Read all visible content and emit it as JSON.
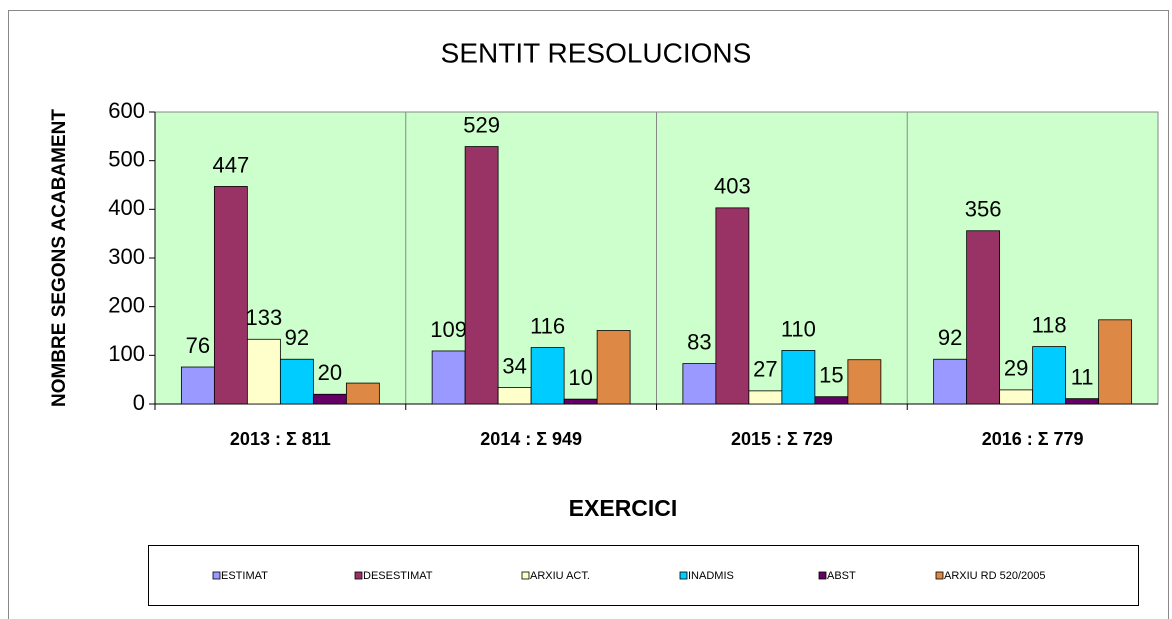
{
  "chart_data": {
    "type": "bar",
    "title": "SENTIT RESOLUCIONS",
    "x_label": "EXERCICI",
    "y_label": "NOMBRE SEGONS ACABAMENT",
    "categories": [
      "2013 : Σ 811",
      "2014 : Σ 949",
      "2015 : Σ 729",
      "2016 : Σ 779"
    ],
    "series": [
      {
        "name": "ESTIMAT",
        "color": "#9999ff",
        "values": [
          76,
          109,
          83,
          92
        ],
        "labels": true
      },
      {
        "name": "DESESTIMAT",
        "color": "#993366",
        "values": [
          447,
          529,
          403,
          356
        ],
        "labels": true
      },
      {
        "name": "ARXIU ACT.",
        "color": "#ffffcc",
        "values": [
          133,
          34,
          27,
          29
        ],
        "labels": true
      },
      {
        "name": "INADMIS",
        "color": "#00ccff",
        "values": [
          92,
          116,
          110,
          118
        ],
        "labels": true
      },
      {
        "name": "ABST",
        "color": "#660066",
        "values": [
          20,
          10,
          15,
          11
        ],
        "labels": true
      },
      {
        "name": "ARXIU RD 520/2005",
        "color": "#dd8844",
        "values": [
          43,
          151,
          91,
          173
        ],
        "labels": false
      }
    ],
    "ylim": [
      0,
      600
    ],
    "yticks": [
      0,
      100,
      200,
      300,
      400,
      500,
      600
    ],
    "plot_background": "#ccffcc"
  }
}
